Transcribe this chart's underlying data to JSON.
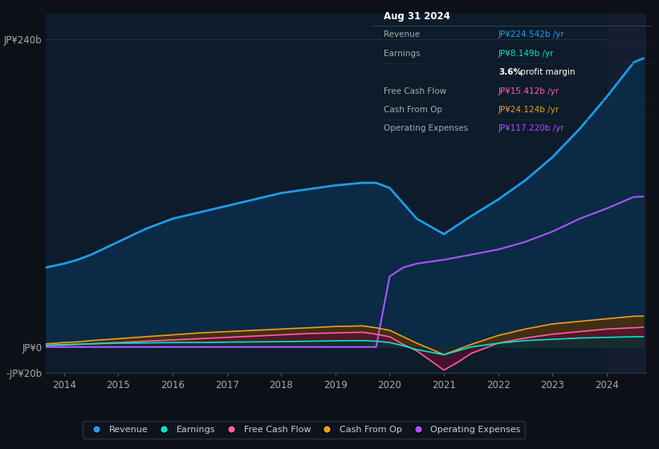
{
  "bg_color": "#0d1117",
  "plot_bg_color": "#0d1b2a",
  "grid_color": "#1e3050",
  "years": [
    2013.67,
    2014.0,
    2014.25,
    2014.5,
    2015.0,
    2015.5,
    2016.0,
    2016.5,
    2017.0,
    2017.5,
    2018.0,
    2018.5,
    2019.0,
    2019.5,
    2019.75,
    2020.0,
    2020.25,
    2020.5,
    2021.0,
    2021.25,
    2021.5,
    2022.0,
    2022.5,
    2023.0,
    2023.5,
    2024.0,
    2024.5,
    2024.67
  ],
  "revenue": [
    62,
    65,
    68,
    72,
    82,
    92,
    100,
    105,
    110,
    115,
    120,
    123,
    126,
    128,
    128,
    124,
    112,
    100,
    88,
    95,
    102,
    115,
    130,
    148,
    170,
    195,
    222,
    225
  ],
  "earnings": [
    1.5,
    2,
    2.2,
    2.5,
    3,
    3.2,
    3.5,
    3.5,
    3.8,
    4,
    4.2,
    4.5,
    4.8,
    5,
    4.5,
    3.5,
    1,
    -2,
    -6,
    -3,
    0,
    3,
    5,
    6,
    7,
    7.5,
    8,
    8.1
  ],
  "free_cash": [
    1,
    1.5,
    2,
    2.5,
    3.5,
    4.5,
    5.5,
    6.5,
    7.5,
    8.5,
    9.5,
    10.5,
    11,
    11.5,
    10,
    8,
    2,
    -3,
    -18,
    -12,
    -5,
    3,
    7,
    10,
    12,
    14,
    15,
    15.4
  ],
  "cash_op": [
    2.5,
    3.5,
    4,
    5,
    6.5,
    8,
    9.5,
    11,
    12,
    13,
    14,
    15,
    16,
    16.5,
    15,
    13,
    8,
    3,
    -6,
    -2,
    2,
    9,
    14,
    18,
    20,
    22,
    24,
    24.1
  ],
  "op_expenses": [
    0,
    0,
    0,
    0,
    0,
    0,
    0,
    0,
    0,
    0,
    0,
    0,
    0,
    0,
    0,
    55,
    62,
    65,
    68,
    70,
    72,
    76,
    82,
    90,
    100,
    108,
    117,
    117.2
  ],
  "ylim": [
    -20,
    260
  ],
  "ytick_positions": [
    -20,
    0,
    240
  ],
  "ytick_labels": [
    "-JP¥20b",
    "JP¥0",
    "JP¥240b"
  ],
  "xticks": [
    2014,
    2015,
    2016,
    2017,
    2018,
    2019,
    2020,
    2021,
    2022,
    2023,
    2024
  ],
  "revenue_color": "#1e9be8",
  "revenue_fill": "#0a2a45",
  "earnings_color": "#00e5cc",
  "free_cash_color": "#ff5fa0",
  "cash_op_color": "#e8a020",
  "op_expenses_color": "#aa55ff",
  "op_expenses_fill": "#251050",
  "highlight_start": 2024.0,
  "highlight_color": "#141e30",
  "tooltip": {
    "date": "Aug 31 2024",
    "rows": [
      {
        "label": "Revenue",
        "value": "JP¥224.542b /yr",
        "val_color": "#1e9be8"
      },
      {
        "label": "Earnings",
        "value": "JP¥8.149b /yr",
        "val_color": "#00e5cc"
      },
      {
        "label": "",
        "value": "3.6% profit margin",
        "val_color": "#ffffff",
        "bold": true
      },
      {
        "label": "Free Cash Flow",
        "value": "JP¥15.412b /yr",
        "val_color": "#ff5fa0"
      },
      {
        "label": "Cash From Op",
        "value": "JP¥24.124b /yr",
        "val_color": "#e8a020"
      },
      {
        "label": "Operating Expenses",
        "value": "JP¥117.220b /yr",
        "val_color": "#aa55ff"
      }
    ]
  },
  "legend_items": [
    {
      "label": "Revenue",
      "color": "#1e9be8"
    },
    {
      "label": "Earnings",
      "color": "#00e5cc"
    },
    {
      "label": "Free Cash Flow",
      "color": "#ff5fa0"
    },
    {
      "label": "Cash From Op",
      "color": "#e8a020"
    },
    {
      "label": "Operating Expenses",
      "color": "#aa55ff"
    }
  ]
}
